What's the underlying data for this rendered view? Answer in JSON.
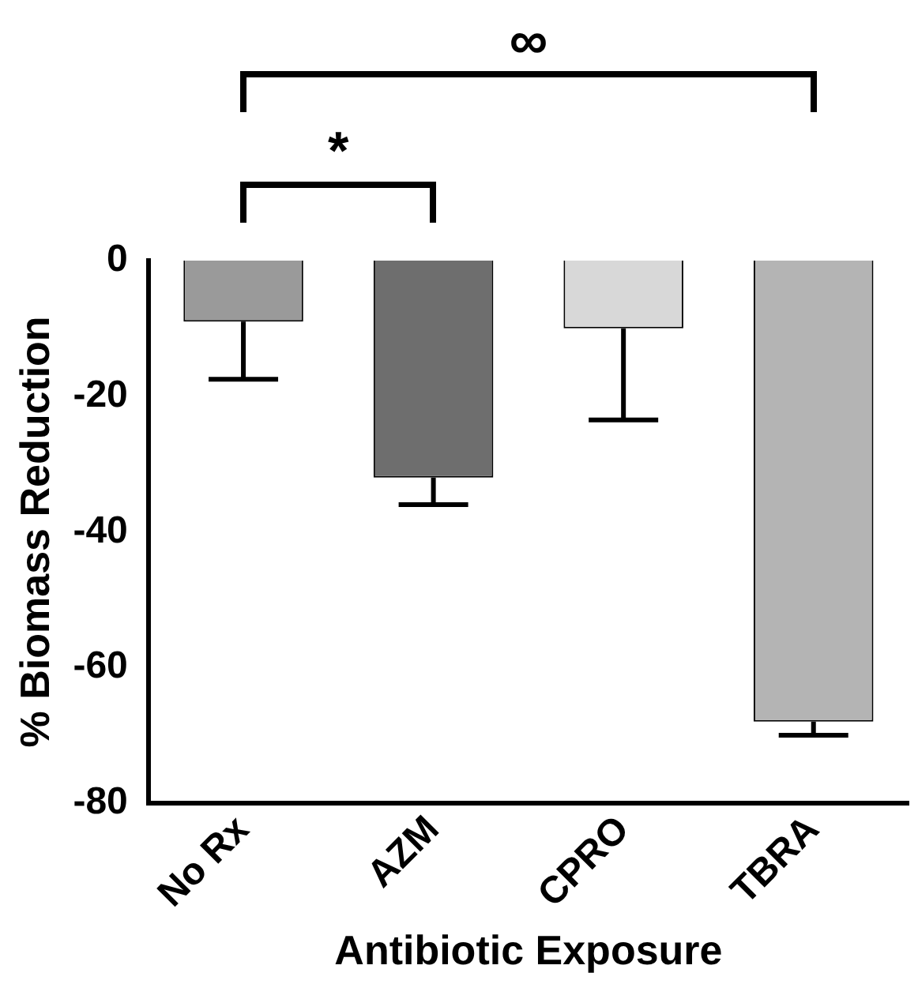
{
  "chart_data": {
    "type": "bar",
    "xlabel": "Antibiotic Exposure",
    "ylabel": "% Biomass Reduction",
    "categories": [
      "No Rx",
      "AZM",
      "CPRO",
      "TBRA"
    ],
    "values": [
      -9,
      -32,
      -10,
      -68
    ],
    "errors": [
      [
        -17.5,
        -9
      ],
      [
        -36,
        -32
      ],
      [
        -23.5,
        -10
      ],
      [
        -70,
        -68
      ]
    ],
    "colors": [
      "#9a9a9a",
      "#6e6e6e",
      "#d8d8d8",
      "#b4b4b4"
    ],
    "ylim": [
      -80,
      0
    ],
    "yticks": [
      -80,
      -60,
      -40,
      -20,
      0
    ],
    "grid": false,
    "annotations": [
      "*",
      "∞"
    ]
  }
}
